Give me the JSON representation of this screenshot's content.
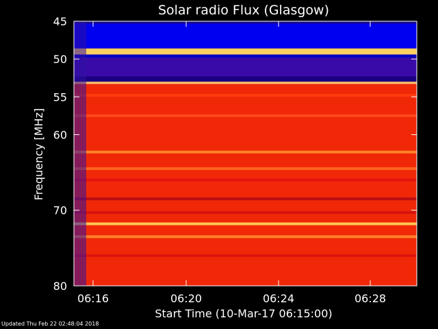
{
  "chart_data": {
    "type": "heatmap",
    "title": "Solar radio Flux (Glasgow)",
    "xlabel": "Start Time (10-Mar-17 06:15:00)",
    "ylabel": "Frequency [MHz]",
    "x_range_minutes": [
      6.25,
      16.25
    ],
    "x_ticks": [
      {
        "minute": 7.5,
        "label": "06:16"
      },
      {
        "minute": 11.5,
        "label": "06:20"
      },
      {
        "minute": 15.5,
        "label": "06:24"
      },
      {
        "minute": 19.5,
        "label": "06:28"
      }
    ],
    "ylim_mhz": [
      45,
      80
    ],
    "y_ticks": [
      {
        "mhz": 45,
        "label": "45"
      },
      {
        "mhz": 50,
        "label": "50"
      },
      {
        "mhz": 55,
        "label": "55"
      },
      {
        "mhz": 60,
        "label": "60"
      },
      {
        "mhz": 70,
        "label": "70"
      },
      {
        "mhz": 80,
        "label": "80"
      }
    ],
    "bands": [
      {
        "from": 45.0,
        "to": 45.3,
        "color": "#1a0a8a"
      },
      {
        "from": 45.3,
        "to": 48.6,
        "color": "#0000f0"
      },
      {
        "from": 48.6,
        "to": 49.4,
        "color": "#ffd060"
      },
      {
        "from": 49.4,
        "to": 49.8,
        "color": "#0000c8"
      },
      {
        "from": 49.8,
        "to": 52.3,
        "color": "#3a0aa8"
      },
      {
        "from": 52.3,
        "to": 53.0,
        "color": "#1a0080"
      },
      {
        "from": 53.0,
        "to": 53.3,
        "color": "#ffc070"
      },
      {
        "from": 53.3,
        "to": 80.0,
        "color": "#f02808"
      }
    ],
    "highlights": [
      {
        "mhz": 54.8,
        "color": "#ff4010"
      },
      {
        "mhz": 57.5,
        "color": "#ff5020"
      },
      {
        "mhz": 62.3,
        "color": "#ff9030"
      },
      {
        "mhz": 64.5,
        "color": "#ff7020"
      },
      {
        "mhz": 66.0,
        "color": "#e01010"
      },
      {
        "mhz": 68.5,
        "color": "#b00818"
      },
      {
        "mhz": 70.3,
        "color": "#d01010"
      },
      {
        "mhz": 71.8,
        "color": "#ffe060"
      },
      {
        "mhz": 73.5,
        "color": "#ff9030"
      },
      {
        "mhz": 76.0,
        "color": "#d81010"
      }
    ],
    "colors": {
      "frame": "#ffffff",
      "background": "#000000"
    }
  },
  "footer": {
    "updated": "Updated Thu Feb 22 02:48:04 2018"
  }
}
